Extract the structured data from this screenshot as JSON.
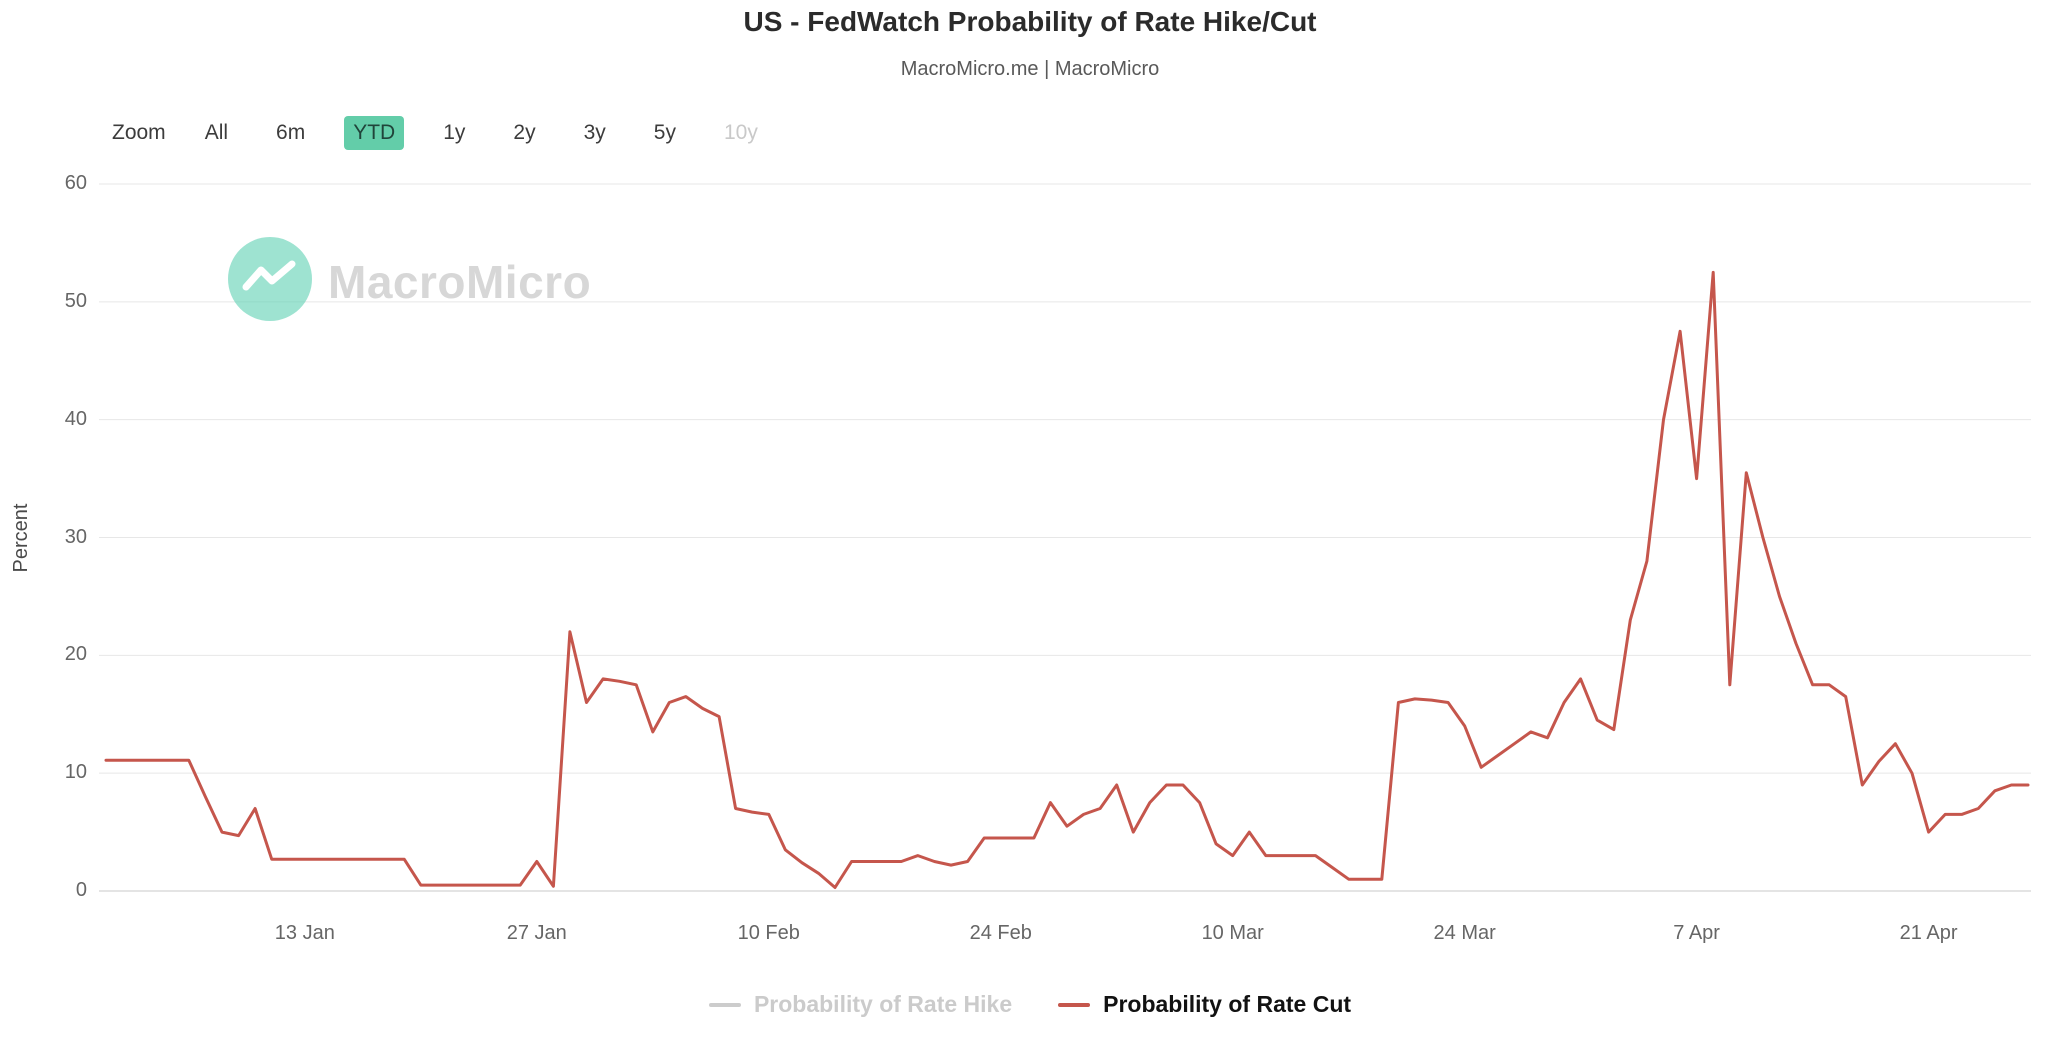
{
  "header": {
    "title": "US - FedWatch Probability of Rate Hike/Cut",
    "subtitle": "MacroMicro.me | MacroMicro"
  },
  "toolbar": {
    "zoom_label": "Zoom",
    "buttons": [
      "All",
      "6m",
      "YTD",
      "1y",
      "2y",
      "3y",
      "5y",
      "10y"
    ],
    "active": "YTD",
    "disabled": [
      "10y"
    ],
    "active_bg": "#63cda9"
  },
  "watermark": {
    "text": "MacroMicro",
    "icon": "macromicro-logo-icon",
    "icon_color": "#5ed1b2"
  },
  "chart_data": {
    "type": "line",
    "title": "US - FedWatch Probability of Rate Hike/Cut",
    "xlabel": "",
    "ylabel": "Percent",
    "ylim": [
      0,
      60
    ],
    "y_ticks": [
      0,
      10,
      20,
      30,
      40,
      50,
      60
    ],
    "grid": "horizontal",
    "legend_position": "bottom",
    "x_tick_labels": [
      "13 Jan",
      "27 Jan",
      "10 Feb",
      "24 Feb",
      "10 Mar",
      "24 Mar",
      "7 Apr",
      "21 Apr"
    ],
    "x_tick_indices": [
      12,
      26,
      40,
      54,
      68,
      82,
      96,
      110
    ],
    "x_range_note": "Daily points, 1 Jan to 27 Apr (YTD)",
    "series": [
      {
        "name": "Probability of Rate Hike",
        "color": "#cccccc",
        "visible": false,
        "values": []
      },
      {
        "name": "Probability of Rate Cut",
        "color": "#c5564c",
        "visible": true,
        "values": [
          11.1,
          11.1,
          11.1,
          11.1,
          11.1,
          11.1,
          8,
          5,
          4.7,
          7,
          2.7,
          2.7,
          2.7,
          2.7,
          2.7,
          2.7,
          2.7,
          2.7,
          2.7,
          0.5,
          0.5,
          0.5,
          0.5,
          0.5,
          0.5,
          0.5,
          2.5,
          0.4,
          22,
          16,
          18,
          17.8,
          17.5,
          13.5,
          16,
          16.5,
          15.5,
          14.8,
          7,
          6.7,
          6.5,
          3.5,
          2.4,
          1.5,
          0.3,
          2.5,
          2.5,
          2.5,
          2.5,
          3,
          2.5,
          2.2,
          2.5,
          4.5,
          4.5,
          4.5,
          4.5,
          7.5,
          5.5,
          6.5,
          7,
          9,
          5,
          7.5,
          9,
          9,
          7.5,
          4,
          3,
          5,
          3,
          3,
          3,
          3,
          2,
          1,
          1,
          1,
          16,
          16.3,
          16.2,
          16,
          14,
          10.5,
          11.5,
          12.5,
          13.5,
          13,
          16,
          18,
          14.5,
          13.7,
          23,
          28,
          40,
          47.5,
          35,
          52.5,
          17.5,
          35.5,
          30,
          25,
          21,
          17.5,
          17.5,
          16.5,
          9,
          11,
          12.5,
          10,
          5,
          6.5,
          6.5,
          7,
          8.5,
          9,
          9
        ]
      }
    ]
  }
}
